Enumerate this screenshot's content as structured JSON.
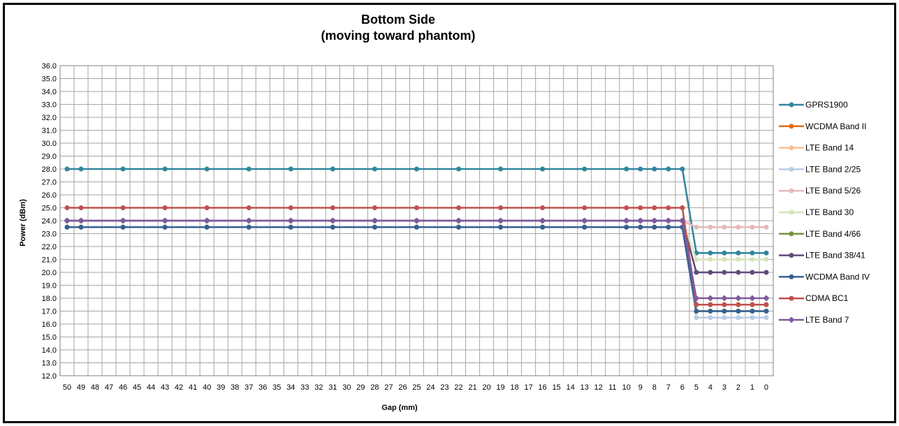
{
  "chart_data": {
    "type": "line",
    "title": "Bottom Side",
    "subtitle": "(moving toward phantom)",
    "xlabel": "Gap (mm)",
    "ylabel": "Power (dBm)",
    "ylim": [
      12.0,
      36.0
    ],
    "ytick_step": 1.0,
    "x_categories": [
      "50",
      "49",
      "48",
      "47",
      "46",
      "45",
      "44",
      "43",
      "42",
      "41",
      "40",
      "39",
      "38",
      "37",
      "36",
      "35",
      "34",
      "33",
      "32",
      "31",
      "30",
      "29",
      "28",
      "27",
      "26",
      "25",
      "24",
      "23",
      "22",
      "21",
      "20",
      "19",
      "18",
      "17",
      "16",
      "15",
      "14",
      "13",
      "12",
      "11",
      "10",
      "9",
      "8",
      "7",
      "6",
      "5",
      "4",
      "3",
      "2",
      "1",
      "0"
    ],
    "x": [
      50,
      49,
      46,
      43,
      40,
      37,
      34,
      31,
      28,
      25,
      22,
      19,
      16,
      13,
      10,
      9,
      8,
      7,
      6,
      5,
      4,
      3,
      2,
      1,
      0
    ],
    "grid": true,
    "legend_position": "right",
    "series": [
      {
        "name": "GPRS1900",
        "color": "#31859c",
        "marker": "circle",
        "values": [
          28,
          28,
          28,
          28,
          28,
          28,
          28,
          28,
          28,
          28,
          28,
          28,
          28,
          28,
          28,
          28,
          28,
          28,
          28,
          21.5,
          21.5,
          21.5,
          21.5,
          21.5,
          21.5
        ]
      },
      {
        "name": "WCDMA Band II",
        "color": "#e46c0a",
        "marker": "circle",
        "values": [
          23.5,
          23.5,
          23.5,
          23.5,
          23.5,
          23.5,
          23.5,
          23.5,
          23.5,
          23.5,
          23.5,
          23.5,
          23.5,
          23.5,
          23.5,
          23.5,
          23.5,
          23.5,
          23.5,
          17.5,
          17.5,
          17.5,
          17.5,
          17.5,
          17.5
        ]
      },
      {
        "name": "LTE Band 14",
        "color": "#fac090",
        "marker": "circle",
        "values": [
          23.5,
          23.5,
          23.5,
          23.5,
          23.5,
          23.5,
          23.5,
          23.5,
          23.5,
          23.5,
          23.5,
          23.5,
          23.5,
          23.5,
          23.5,
          23.5,
          23.5,
          23.5,
          23.5,
          17.5,
          17.5,
          17.5,
          17.5,
          17.5,
          17.5
        ]
      },
      {
        "name": "LTE Band 2/25",
        "color": "#b9cde5",
        "marker": "circle",
        "values": [
          23.5,
          23.5,
          23.5,
          23.5,
          23.5,
          23.5,
          23.5,
          23.5,
          23.5,
          23.5,
          23.5,
          23.5,
          23.5,
          23.5,
          23.5,
          23.5,
          23.5,
          23.5,
          23.5,
          16.5,
          16.5,
          16.5,
          16.5,
          16.5,
          16.5
        ]
      },
      {
        "name": "LTE Band 5/26",
        "color": "#e6b9b8",
        "marker": "circle",
        "values": [
          24,
          24,
          24,
          24,
          24,
          24,
          24,
          24,
          24,
          24,
          24,
          24,
          24,
          24,
          24,
          24,
          24,
          24,
          24,
          23.5,
          23.5,
          23.5,
          23.5,
          23.5,
          23.5
        ]
      },
      {
        "name": "LTE Band 30",
        "color": "#d7e4bd",
        "marker": "circle",
        "values": [
          24,
          24,
          24,
          24,
          24,
          24,
          24,
          24,
          24,
          24,
          24,
          24,
          24,
          24,
          24,
          24,
          24,
          24,
          24,
          21,
          21,
          21,
          21,
          21,
          21
        ]
      },
      {
        "name": "LTE Band 4/66",
        "color": "#77933c",
        "marker": "circle",
        "values": [
          23.5,
          23.5,
          23.5,
          23.5,
          23.5,
          23.5,
          23.5,
          23.5,
          23.5,
          23.5,
          23.5,
          23.5,
          23.5,
          23.5,
          23.5,
          23.5,
          23.5,
          23.5,
          23.5,
          17,
          17,
          17,
          17,
          17,
          17
        ]
      },
      {
        "name": "LTE Band 38/41",
        "color": "#604a7b",
        "marker": "circle",
        "values": [
          24,
          24,
          24,
          24,
          24,
          24,
          24,
          24,
          24,
          24,
          24,
          24,
          24,
          24,
          24,
          24,
          24,
          24,
          24,
          20,
          20,
          20,
          20,
          20,
          20
        ]
      },
      {
        "name": "WCDMA Band IV",
        "color": "#376092",
        "marker": "circle",
        "values": [
          23.5,
          23.5,
          23.5,
          23.5,
          23.5,
          23.5,
          23.5,
          23.5,
          23.5,
          23.5,
          23.5,
          23.5,
          23.5,
          23.5,
          23.5,
          23.5,
          23.5,
          23.5,
          23.5,
          17,
          17,
          17,
          17,
          17,
          17
        ]
      },
      {
        "name": "CDMA BC1",
        "color": "#c0504d",
        "marker": "circle",
        "values": [
          25,
          25,
          25,
          25,
          25,
          25,
          25,
          25,
          25,
          25,
          25,
          25,
          25,
          25,
          25,
          25,
          25,
          25,
          25,
          17.5,
          17.5,
          17.5,
          17.5,
          17.5,
          17.5
        ]
      },
      {
        "name": "LTE Band 7",
        "color": "#7f5a9e",
        "marker": "diamond",
        "values": [
          24,
          24,
          24,
          24,
          24,
          24,
          24,
          24,
          24,
          24,
          24,
          24,
          24,
          24,
          24,
          24,
          24,
          24,
          24,
          18,
          18,
          18,
          18,
          18,
          18
        ]
      }
    ]
  }
}
